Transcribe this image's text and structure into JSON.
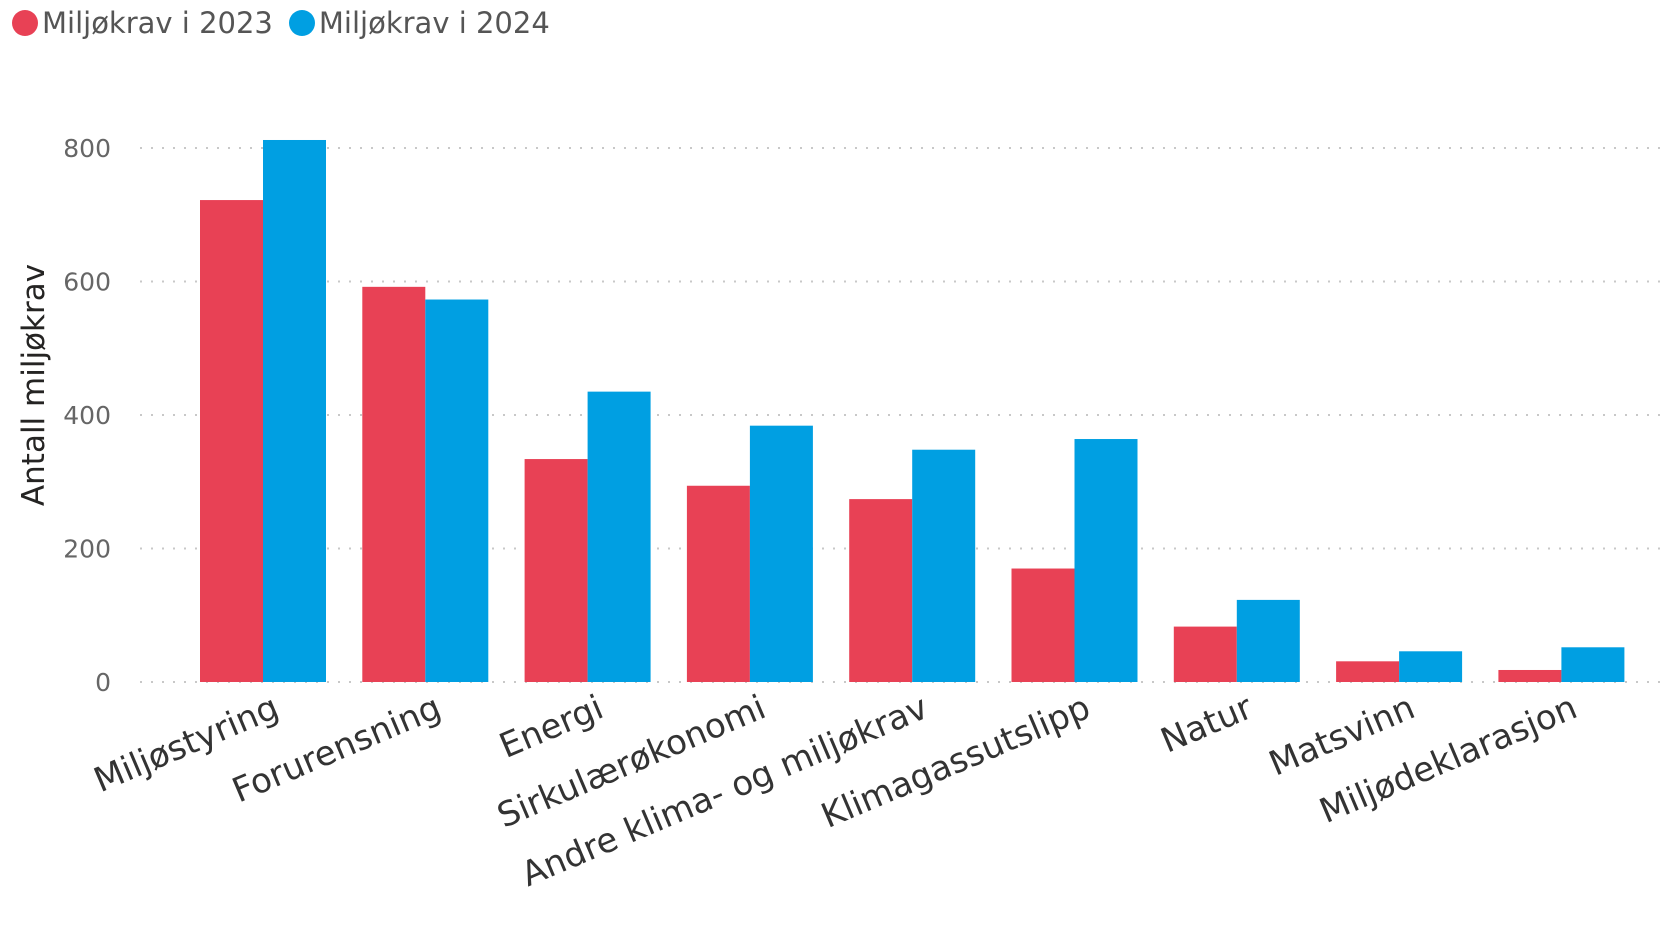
{
  "chart_data": {
    "type": "bar",
    "title": "",
    "xlabel": "",
    "ylabel": "Antall miljøkrav",
    "ylim": [
      0,
      850
    ],
    "yticks": [
      0,
      200,
      400,
      600,
      800
    ],
    "grid": "horizontal dotted",
    "legend_position": "top-left",
    "categories": [
      "Miljøstyring",
      "Forurensning",
      "Energi",
      "Sirkulærøkonomi",
      "Andre klima- og miljøkrav",
      "Klimagassutslipp",
      "Natur",
      "Matsvinn",
      "Miljødeklarasjon"
    ],
    "series": [
      {
        "name": "Miljøkrav i 2023",
        "color": "#E84155",
        "values": [
          722,
          592,
          334,
          294,
          274,
          170,
          83,
          31,
          18
        ]
      },
      {
        "name": "Miljøkrav i 2024",
        "color": "#009FE2",
        "values": [
          812,
          573,
          435,
          384,
          348,
          364,
          123,
          46,
          52
        ]
      }
    ]
  }
}
